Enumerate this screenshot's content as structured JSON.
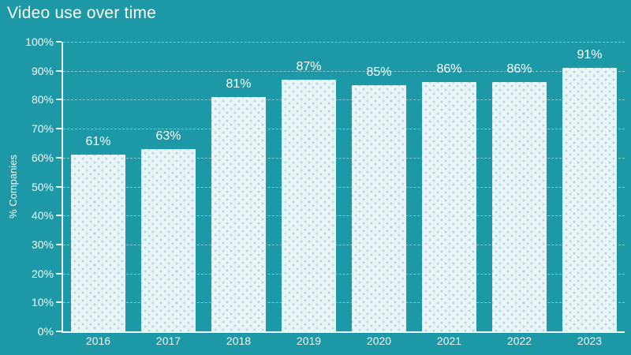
{
  "chart_data": {
    "type": "bar",
    "title": "Video use over time",
    "xlabel": "",
    "ylabel": "% Companies",
    "categories": [
      "2016",
      "2017",
      "2018",
      "2019",
      "2020",
      "2021",
      "2022",
      "2023"
    ],
    "values": [
      61,
      63,
      81,
      87,
      85,
      86,
      86,
      91
    ],
    "bar_labels": [
      "61%",
      "63%",
      "81%",
      "87%",
      "85%",
      "86%",
      "86%",
      "91%"
    ],
    "ylim": [
      0,
      100
    ],
    "ytick_step": 10,
    "ytick_labels": [
      "0%",
      "10%",
      "20%",
      "30%",
      "40%",
      "50%",
      "60%",
      "70%",
      "80%",
      "90%",
      "100%"
    ],
    "grid": "horizontal-dashed",
    "legend": "none",
    "colors": {
      "background": "#1d98a7",
      "bar_fill": "#e9f4f7",
      "text": "#ffffff",
      "gridline": "rgba(255,255,255,0.45)",
      "axis": "#f5fcfd"
    }
  }
}
